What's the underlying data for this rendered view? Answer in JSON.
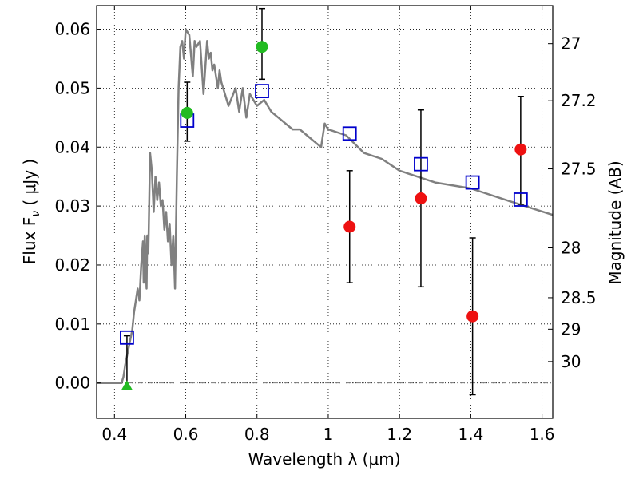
{
  "chart_data": {
    "type": "scatter",
    "xlabel": "Wavelength  λ (μm)",
    "ylabel": "Flux  F",
    "ylabel_sub": "ν",
    "ylabel_unit": "  ( μJy )",
    "y2label": "Magnitude (AB)",
    "xlim": [
      0.35,
      1.63
    ],
    "ylim": [
      -0.006,
      0.064
    ],
    "xticks": [
      0.4,
      0.6,
      0.8,
      1.0,
      1.2,
      1.4,
      1.6
    ],
    "xtick_labels": [
      "0.4",
      "0.6",
      "0.8",
      "1",
      "1.2",
      "1.4",
      "1.6"
    ],
    "yticks": [
      0.0,
      0.01,
      0.02,
      0.03,
      0.04,
      0.05,
      0.06
    ],
    "ytick_labels": [
      "0.00",
      "0.01",
      "0.02",
      "0.03",
      "0.04",
      "0.05",
      "0.06"
    ],
    "mag_ticks": [
      27,
      27.2,
      27.5,
      28,
      28.5,
      29,
      30
    ],
    "mag_tick_labels": [
      "27",
      "27.2",
      "27.5",
      "28",
      "28.5",
      "29",
      "30"
    ],
    "grid": true,
    "colors": {
      "model": "#808080",
      "model_flux": "#0000cc",
      "detection": "#22bb22",
      "upper_limit": "#ee1111",
      "errorbar": "#000000",
      "zero_line": "#777777"
    },
    "series": [
      {
        "name": "model spectrum",
        "kind": "line",
        "x": [
          0.35,
          0.42,
          0.425,
          0.43,
          0.44,
          0.45,
          0.455,
          0.46,
          0.465,
          0.47,
          0.475,
          0.48,
          0.482,
          0.485,
          0.49,
          0.492,
          0.495,
          0.5,
          0.505,
          0.51,
          0.515,
          0.52,
          0.525,
          0.53,
          0.535,
          0.54,
          0.545,
          0.55,
          0.555,
          0.56,
          0.565,
          0.57,
          0.575,
          0.58,
          0.585,
          0.59,
          0.595,
          0.6,
          0.61,
          0.62,
          0.625,
          0.63,
          0.64,
          0.65,
          0.66,
          0.665,
          0.67,
          0.675,
          0.68,
          0.69,
          0.695,
          0.7,
          0.72,
          0.74,
          0.75,
          0.76,
          0.77,
          0.78,
          0.8,
          0.82,
          0.84,
          0.86,
          0.88,
          0.9,
          0.92,
          0.94,
          0.96,
          0.98,
          0.99,
          1.0,
          1.05,
          1.1,
          1.15,
          1.2,
          1.25,
          1.3,
          1.4,
          1.5,
          1.63
        ],
        "y": [
          0.0,
          0.0,
          0.001,
          0.003,
          0.006,
          0.009,
          0.012,
          0.014,
          0.016,
          0.014,
          0.02,
          0.024,
          0.017,
          0.025,
          0.016,
          0.025,
          0.022,
          0.039,
          0.036,
          0.029,
          0.035,
          0.031,
          0.034,
          0.03,
          0.031,
          0.026,
          0.029,
          0.024,
          0.027,
          0.02,
          0.025,
          0.016,
          0.035,
          0.05,
          0.057,
          0.058,
          0.055,
          0.06,
          0.059,
          0.052,
          0.058,
          0.057,
          0.058,
          0.049,
          0.058,
          0.055,
          0.056,
          0.053,
          0.054,
          0.05,
          0.053,
          0.051,
          0.047,
          0.05,
          0.046,
          0.05,
          0.045,
          0.049,
          0.047,
          0.048,
          0.046,
          0.045,
          0.044,
          0.043,
          0.043,
          0.042,
          0.041,
          0.04,
          0.044,
          0.043,
          0.042,
          0.039,
          0.038,
          0.036,
          0.035,
          0.034,
          0.033,
          0.031,
          0.0285
        ]
      },
      {
        "name": "model band fluxes",
        "kind": "open-square",
        "x": [
          0.435,
          0.604,
          0.814,
          1.06,
          1.26,
          1.405,
          1.54
        ],
        "y": [
          0.0077,
          0.0445,
          0.0495,
          0.0423,
          0.0371,
          0.034,
          0.0311
        ]
      },
      {
        "name": "detections",
        "kind": "filled-circle",
        "x": [
          0.604,
          0.814
        ],
        "y": [
          0.0458,
          0.057
        ],
        "yerr_low": [
          0.0048,
          0.0055
        ],
        "yerr_high": [
          0.0052,
          0.0065
        ]
      },
      {
        "name": "non-detection marker",
        "kind": "triangle",
        "x": [
          0.435
        ],
        "y": [
          -0.0005
        ],
        "yerr_low": [
          0.0
        ],
        "yerr_high": [
          0.0085
        ]
      },
      {
        "name": "low significance",
        "kind": "filled-circle",
        "x": [
          1.06,
          1.26,
          1.405,
          1.54
        ],
        "y": [
          0.0265,
          0.0313,
          0.0113,
          0.0396
        ],
        "yerr_low": [
          0.0095,
          0.015,
          0.0133,
          0.0093
        ],
        "yerr_high": [
          0.0095,
          0.015,
          0.0133,
          0.009
        ]
      }
    ]
  }
}
